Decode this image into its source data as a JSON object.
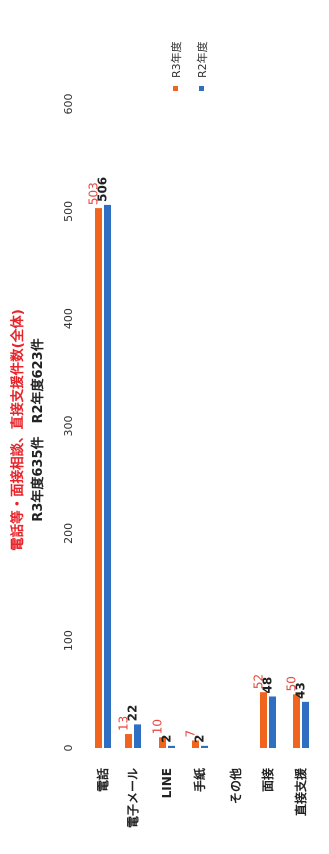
{
  "chart_data": {
    "type": "bar",
    "orientation": "horizontal",
    "title": "電話等・面接相談、直接支援件数(全体)",
    "subtitle": "R3年度635件　R2年度623件",
    "categories": [
      "電話",
      "電子メール",
      "LINE",
      "手紙",
      "その他",
      "面接",
      "直接支援"
    ],
    "series": [
      {
        "name": "R3年度",
        "color": "#f0641e",
        "values": [
          503,
          13,
          10,
          7,
          null,
          52,
          50
        ]
      },
      {
        "name": "R2年度",
        "color": "#2f6fc2",
        "values": [
          506,
          22,
          2,
          2,
          null,
          48,
          43
        ]
      }
    ],
    "data_labels": [
      [
        "503",
        "13",
        "10",
        "7",
        "",
        "52",
        "50"
      ],
      [
        "506",
        "22",
        "2",
        "2",
        "",
        "48",
        "43"
      ]
    ],
    "label_colors": [
      "#e8453c",
      "#222222"
    ],
    "xlim": [
      0,
      600
    ],
    "xticks": [
      0,
      100,
      200,
      300,
      400,
      500,
      600
    ],
    "grid": false,
    "legend_position": "top-right",
    "title_color": "#e8242a"
  }
}
